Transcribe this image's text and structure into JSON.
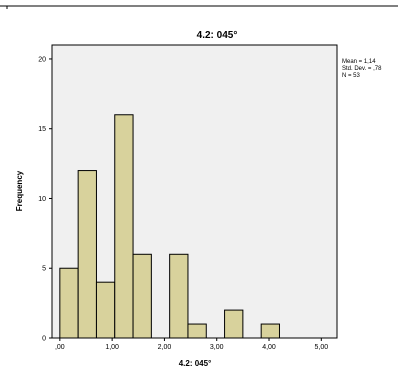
{
  "chart_data": {
    "type": "bar",
    "title": "4.2: 045°",
    "xlabel": "4.2: 045°",
    "ylabel": "Frequency",
    "bin_edges": [
      0.0,
      0.35,
      0.7,
      1.05,
      1.4,
      1.75,
      2.1,
      2.45,
      2.8,
      3.15,
      3.5,
      3.85,
      4.2
    ],
    "values": [
      5,
      12,
      4,
      16,
      6,
      0,
      6,
      1,
      0,
      2,
      0,
      1
    ],
    "xlim": [
      -0.15,
      5.3
    ],
    "ylim": [
      0,
      21
    ],
    "x_ticks": [
      {
        "value": 0,
        "label": ",00"
      },
      {
        "value": 1,
        "label": "1,00"
      },
      {
        "value": 2,
        "label": "2,00"
      },
      {
        "value": 3,
        "label": "3,00"
      },
      {
        "value": 4,
        "label": "4,00"
      },
      {
        "value": 5,
        "label": "5,00"
      }
    ],
    "y_ticks": [
      {
        "value": 0,
        "label": "0"
      },
      {
        "value": 5,
        "label": "5"
      },
      {
        "value": 10,
        "label": "10"
      },
      {
        "value": 15,
        "label": "15"
      },
      {
        "value": 20,
        "label": "20"
      }
    ],
    "stats": [
      "Mean = 1,14",
      "Std. Dev. = ,78",
      "N = 53"
    ],
    "bar_fill": "#d8d29c",
    "bar_stroke": "#000000",
    "plot_bg": "#f0f0f0",
    "grid": false
  }
}
